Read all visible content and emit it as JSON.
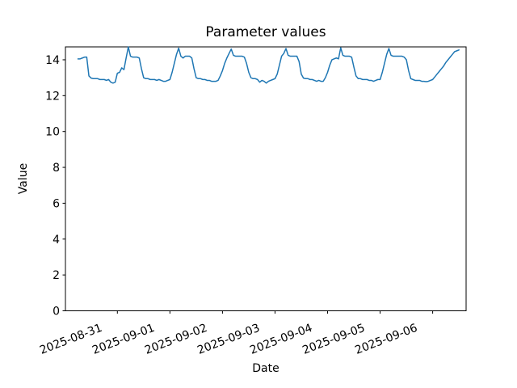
{
  "figure": {
    "title": "Parameter values",
    "xlabel": "Date",
    "ylabel": "Value"
  },
  "chart_data": {
    "type": "line",
    "title": "Parameter values",
    "xlabel": "Date",
    "ylabel": "Value",
    "grid": false,
    "legend_position": "none",
    "line_color": "#1f77b4",
    "y_ticks": [
      0,
      2,
      4,
      6,
      8,
      10,
      12,
      14
    ],
    "ylim": [
      0,
      14.72
    ],
    "x_tick_labels": [
      "2025-08-31",
      "2025-09-01",
      "2025-09-02",
      "2025-09-03",
      "2025-09-04",
      "2025-09-05",
      "2025-09-06"
    ],
    "x_tick_rotation_deg": 21,
    "xlim_hours_from_first_tick": [
      -23.7,
      159.3
    ],
    "series": [
      {
        "name": "Parameter values",
        "start": "2025-08-30 06:00",
        "interval_hours": 1,
        "offset_hours_from_first_tick": -18,
        "values": [
          14.05,
          14.05,
          14.1,
          14.15,
          14.15,
          13.1,
          12.98,
          12.95,
          12.95,
          12.95,
          12.9,
          12.9,
          12.9,
          12.85,
          12.9,
          12.75,
          12.7,
          12.75,
          13.25,
          13.3,
          13.55,
          13.45,
          14.1,
          14.72,
          14.2,
          14.15,
          14.15,
          14.15,
          14.1,
          13.5,
          13.0,
          12.95,
          12.95,
          12.9,
          12.9,
          12.9,
          12.85,
          12.9,
          12.85,
          12.8,
          12.8,
          12.85,
          12.9,
          13.3,
          13.8,
          14.3,
          14.65,
          14.2,
          14.1,
          14.2,
          14.2,
          14.2,
          14.1,
          13.5,
          13.0,
          12.95,
          12.95,
          12.9,
          12.9,
          12.85,
          12.85,
          12.8,
          12.8,
          12.8,
          12.85,
          13.1,
          13.4,
          13.8,
          14.1,
          14.35,
          14.6,
          14.25,
          14.2,
          14.2,
          14.2,
          14.2,
          14.15,
          13.8,
          13.3,
          13.0,
          12.95,
          12.95,
          12.9,
          12.75,
          12.85,
          12.8,
          12.7,
          12.8,
          12.85,
          12.9,
          12.95,
          13.2,
          13.7,
          14.2,
          14.35,
          14.63,
          14.25,
          14.2,
          14.2,
          14.2,
          14.2,
          13.9,
          13.2,
          12.98,
          12.95,
          12.95,
          12.9,
          12.9,
          12.85,
          12.8,
          12.85,
          12.8,
          12.8,
          13.0,
          13.3,
          13.7,
          14.0,
          14.05,
          14.1,
          14.05,
          14.67,
          14.25,
          14.2,
          14.2,
          14.2,
          14.15,
          13.6,
          13.1,
          12.95,
          12.95,
          12.9,
          12.9,
          12.9,
          12.85,
          12.85,
          12.8,
          12.85,
          12.9,
          12.9,
          13.3,
          13.8,
          14.3,
          14.63,
          14.25,
          14.2,
          14.2,
          14.2,
          14.2,
          14.2,
          14.15,
          14.0,
          13.4,
          12.95,
          12.9,
          12.85,
          12.85,
          12.85,
          12.8,
          12.8,
          12.78,
          12.8,
          12.85,
          12.9,
          13.05,
          13.2,
          13.35,
          13.5,
          13.65,
          13.85,
          14.0,
          14.15,
          14.3,
          14.45,
          14.5,
          14.55
        ]
      }
    ]
  }
}
